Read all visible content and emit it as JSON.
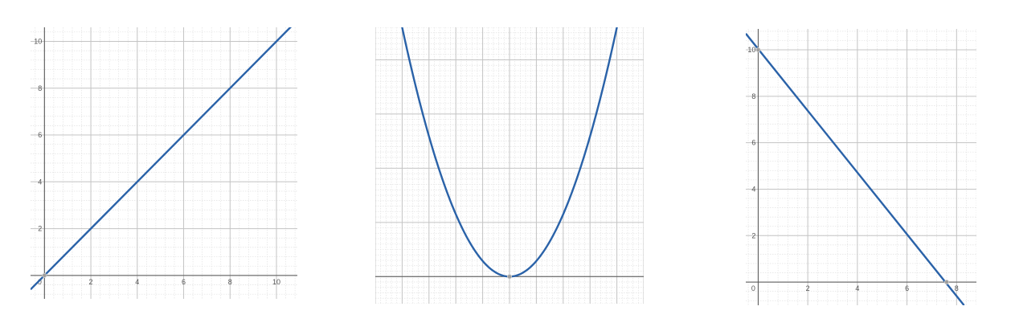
{
  "chart_data": [
    {
      "type": "line",
      "title": "",
      "xlabel": "",
      "ylabel": "",
      "xlim": [
        -0.6,
        10.9
      ],
      "ylim": [
        -1.0,
        10.6
      ],
      "grid": true,
      "x_ticks": [
        "0",
        "2",
        "4",
        "6",
        "8",
        "10"
      ],
      "y_ticks": [
        "2",
        "4",
        "6",
        "8",
        "10"
      ],
      "series": [
        {
          "x": [
            -0.6,
            10.9
          ],
          "y": [
            -0.6,
            10.9
          ]
        }
      ],
      "points": [
        {
          "x": 0,
          "y": 0
        }
      ],
      "line_color": "#2a62a8"
    },
    {
      "type": "line",
      "title": "",
      "xlabel": "",
      "ylabel": "",
      "xlim": [
        -5,
        5
      ],
      "ylim": [
        -0.5,
        4.6
      ],
      "grid": true,
      "x_ticks": [],
      "y_ticks": [],
      "series": [
        {
          "x": [
            -4,
            -3,
            -2,
            -1,
            0,
            1,
            2,
            3,
            4
          ],
          "y": [
            4.6,
            2.7,
            1.2,
            0.3,
            0,
            0.3,
            1.2,
            2.7,
            4.6
          ]
        }
      ],
      "points": [
        {
          "x": 0,
          "y": 0
        }
      ],
      "line_color": "#2a62a8"
    },
    {
      "type": "line",
      "title": "",
      "xlabel": "",
      "ylabel": "",
      "xlim": [
        -0.5,
        8.8
      ],
      "ylim": [
        -1.0,
        10.9
      ],
      "grid": true,
      "x_ticks": [
        "0",
        "2",
        "4",
        "6",
        "8"
      ],
      "y_ticks": [
        "2",
        "4",
        "6",
        "8",
        "10"
      ],
      "series": [
        {
          "x": [
            -0.5,
            8.3
          ],
          "y": [
            10.7,
            -1.0
          ]
        }
      ],
      "points": [
        {
          "x": 0,
          "y": 10
        },
        {
          "x": 7.6,
          "y": 0
        }
      ],
      "line_color": "#2a62a8"
    }
  ]
}
